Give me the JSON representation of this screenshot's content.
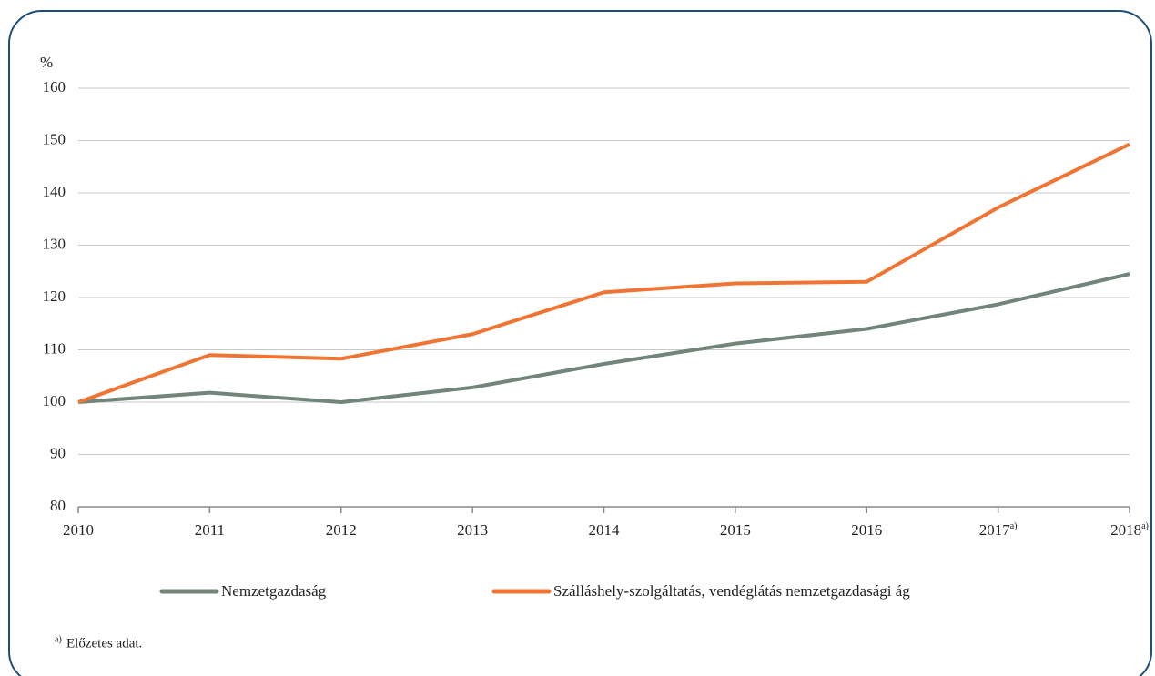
{
  "chart_data": {
    "type": "line",
    "y_unit": "%",
    "categories": [
      "2010",
      "2011",
      "2012",
      "2013",
      "2014",
      "2015",
      "2016",
      "2017",
      "2018"
    ],
    "category_footnotes": [
      null,
      null,
      null,
      null,
      null,
      null,
      null,
      "a)",
      "a)"
    ],
    "series": [
      {
        "name": "Nemzetgazdaság",
        "color": "#71857a",
        "values": [
          100,
          101.8,
          100,
          102.8,
          107.3,
          111.2,
          114,
          118.7,
          124.5
        ]
      },
      {
        "name": "Szálláshely-szolgáltatás, vendéglátás nemzetgazdasági ág",
        "color": "#f07534",
        "values": [
          100,
          109,
          108.3,
          113,
          121,
          122.7,
          123,
          137.2,
          149.3
        ]
      }
    ],
    "ylim": [
      80,
      160
    ],
    "yticks": [
      80,
      90,
      100,
      110,
      120,
      130,
      140,
      150,
      160
    ],
    "grid": true,
    "footnote": {
      "marker": "a)",
      "text": "Előzetes adat."
    }
  }
}
